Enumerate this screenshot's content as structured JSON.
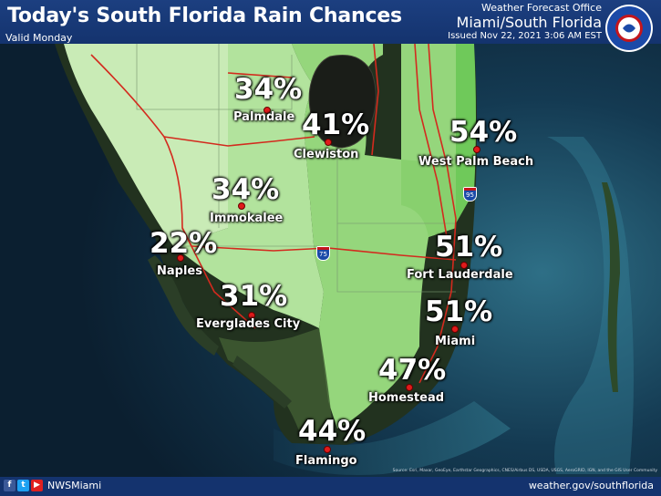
{
  "header": {
    "title": "Today's South Florida Rain Chances",
    "valid": "Valid Monday",
    "office_line1": "Weather Forecast Office",
    "office_line2": "Miami/South Florida",
    "issued": "Issued Nov 22, 2021 3:06 AM EST",
    "logo_text": "NATIONAL WEATHER SERVICE"
  },
  "forecast": [
    {
      "city": "Palmdale",
      "chance": "34%"
    },
    {
      "city": "Clewiston",
      "chance": "41%"
    },
    {
      "city": "West Palm Beach",
      "chance": "54%"
    },
    {
      "city": "Immokalee",
      "chance": "34%"
    },
    {
      "city": "Naples",
      "chance": "22%"
    },
    {
      "city": "Fort Lauderdale",
      "chance": "51%"
    },
    {
      "city": "Everglades City",
      "chance": "31%"
    },
    {
      "city": "Miami",
      "chance": "51%"
    },
    {
      "city": "Homestead",
      "chance": "47%"
    },
    {
      "city": "Flamingo",
      "chance": "44%"
    }
  ],
  "shields": {
    "i95": "95",
    "i75": "75"
  },
  "footer": {
    "handle": "NWSMiami",
    "website": "weather.gov/southflorida",
    "credits": "Source: Esri, Maxar, GeoEye, Earthstar Geographics, CNES/Airbus DS, USDA, USGS, AeroGRID, IGN, and the GIS User Community"
  },
  "colors": {
    "ocean": "#0d2233",
    "lightest_green": "#c9ebb6",
    "light_green": "#a6dd8e",
    "medium_green": "#8dd374",
    "east_green": "#6fc95a",
    "lake": "#1a1d18",
    "highway": "#d32a1e",
    "header_bar": "#14336e"
  }
}
